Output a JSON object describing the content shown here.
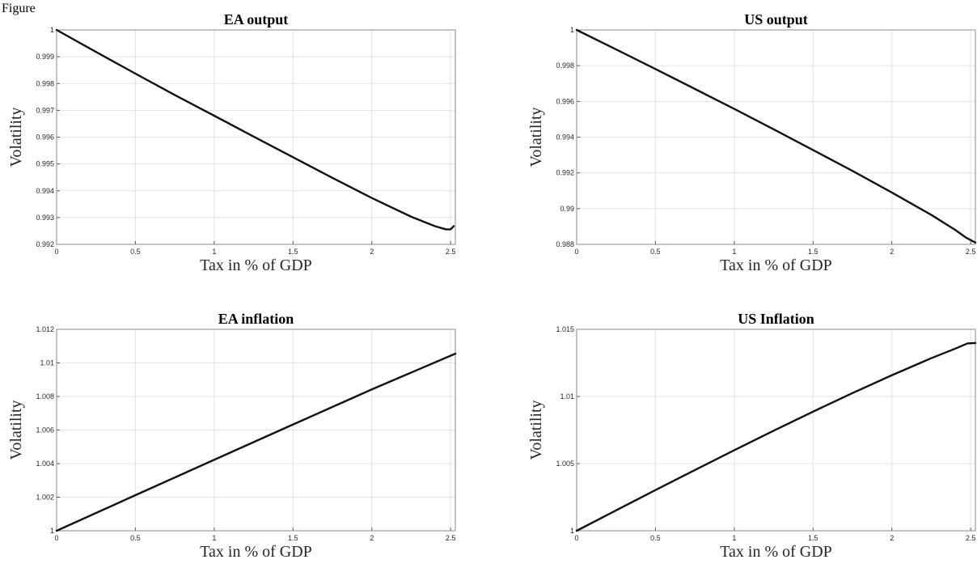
{
  "figure": {
    "caption": "Figure"
  },
  "chart_data": [
    {
      "type": "line",
      "title": "EA output",
      "xlabel": "Tax in % of GDP",
      "ylabel": "Volatility",
      "xlim": [
        0,
        2.53
      ],
      "ylim": [
        0.992,
        1.0
      ],
      "xticks": [
        0,
        0.5,
        1,
        1.5,
        2,
        2.5
      ],
      "xtick_labels": [
        "0",
        "0.5",
        "1",
        "1.5",
        "2",
        "2.5"
      ],
      "yticks": [
        0.992,
        0.993,
        0.994,
        0.995,
        0.996,
        0.997,
        0.998,
        0.999,
        1.0
      ],
      "ytick_labels": [
        "0.992",
        "0.993",
        "0.994",
        "0.995",
        "0.996",
        "0.997",
        "0.998",
        "0.999",
        "1"
      ],
      "grid": true,
      "series": [
        {
          "x": [
            0,
            0.25,
            0.5,
            0.75,
            1.0,
            1.25,
            1.5,
            1.75,
            2.0,
            2.25,
            2.4,
            2.47,
            2.5,
            2.52
          ],
          "y": [
            1.0,
            0.99918,
            0.99837,
            0.99757,
            0.9968,
            0.99602,
            0.99525,
            0.99448,
            0.99373,
            0.99303,
            0.99268,
            0.99256,
            0.99256,
            0.99268
          ]
        }
      ]
    },
    {
      "type": "line",
      "title": "US output",
      "xlabel": "Tax in % of GDP",
      "ylabel": "Volatility",
      "xlim": [
        0,
        2.53
      ],
      "ylim": [
        0.988,
        1.0
      ],
      "xticks": [
        0,
        0.5,
        1,
        1.5,
        2,
        2.5
      ],
      "xtick_labels": [
        "0",
        "0.5",
        "1",
        "1.5",
        "2",
        "2.5"
      ],
      "yticks": [
        0.988,
        0.99,
        0.992,
        0.994,
        0.996,
        0.998,
        1.0
      ],
      "ytick_labels": [
        "0.988",
        "0.99",
        "0.992",
        "0.994",
        "0.996",
        "0.998",
        "1"
      ],
      "grid": true,
      "series": [
        {
          "x": [
            0,
            0.25,
            0.5,
            0.75,
            1.0,
            1.25,
            1.5,
            1.75,
            2.0,
            2.25,
            2.4,
            2.47,
            2.53
          ],
          "y": [
            1.0,
            0.99891,
            0.99781,
            0.9967,
            0.99558,
            0.99444,
            0.99328,
            0.99211,
            0.9909,
            0.98965,
            0.98882,
            0.98838,
            0.9881
          ]
        }
      ]
    },
    {
      "type": "line",
      "title": "EA inflation",
      "xlabel": "Tax in % of GDP",
      "ylabel": "Volatility",
      "xlim": [
        0,
        2.53
      ],
      "ylim": [
        1.0,
        1.012
      ],
      "xticks": [
        0,
        0.5,
        1,
        1.5,
        2,
        2.5
      ],
      "xtick_labels": [
        "0",
        "0.5",
        "1",
        "1.5",
        "2",
        "2.5"
      ],
      "yticks": [
        1.0,
        1.002,
        1.004,
        1.006,
        1.008,
        1.01,
        1.012
      ],
      "ytick_labels": [
        "1",
        "1.002",
        "1.004",
        "1.006",
        "1.008",
        "1.01",
        "1.012"
      ],
      "grid": true,
      "series": [
        {
          "x": [
            0,
            0.5,
            1.0,
            1.5,
            2.0,
            2.53
          ],
          "y": [
            1.0,
            1.00212,
            1.00423,
            1.00633,
            1.00842,
            1.01055
          ]
        }
      ]
    },
    {
      "type": "line",
      "title": "US Inflation",
      "xlabel": "Tax in % of GDP",
      "ylabel": "Volatility",
      "xlim": [
        0,
        2.53
      ],
      "ylim": [
        1.0,
        1.015
      ],
      "xticks": [
        0,
        0.5,
        1,
        1.5,
        2,
        2.5
      ],
      "xtick_labels": [
        "0",
        "0.5",
        "1",
        "1.5",
        "2",
        "2.5"
      ],
      "yticks": [
        1.0,
        1.005,
        1.01,
        1.015
      ],
      "ytick_labels": [
        "1",
        "1.005",
        "1.01",
        "1.015"
      ],
      "grid": true,
      "series": [
        {
          "x": [
            0,
            0.25,
            0.5,
            0.75,
            1.0,
            1.25,
            1.5,
            1.75,
            2.0,
            2.25,
            2.4,
            2.48,
            2.53
          ],
          "y": [
            1.0,
            1.00152,
            1.00303,
            1.00452,
            1.006,
            1.00745,
            1.00887,
            1.01025,
            1.01158,
            1.01285,
            1.01355,
            1.01395,
            1.01398
          ]
        }
      ]
    }
  ]
}
